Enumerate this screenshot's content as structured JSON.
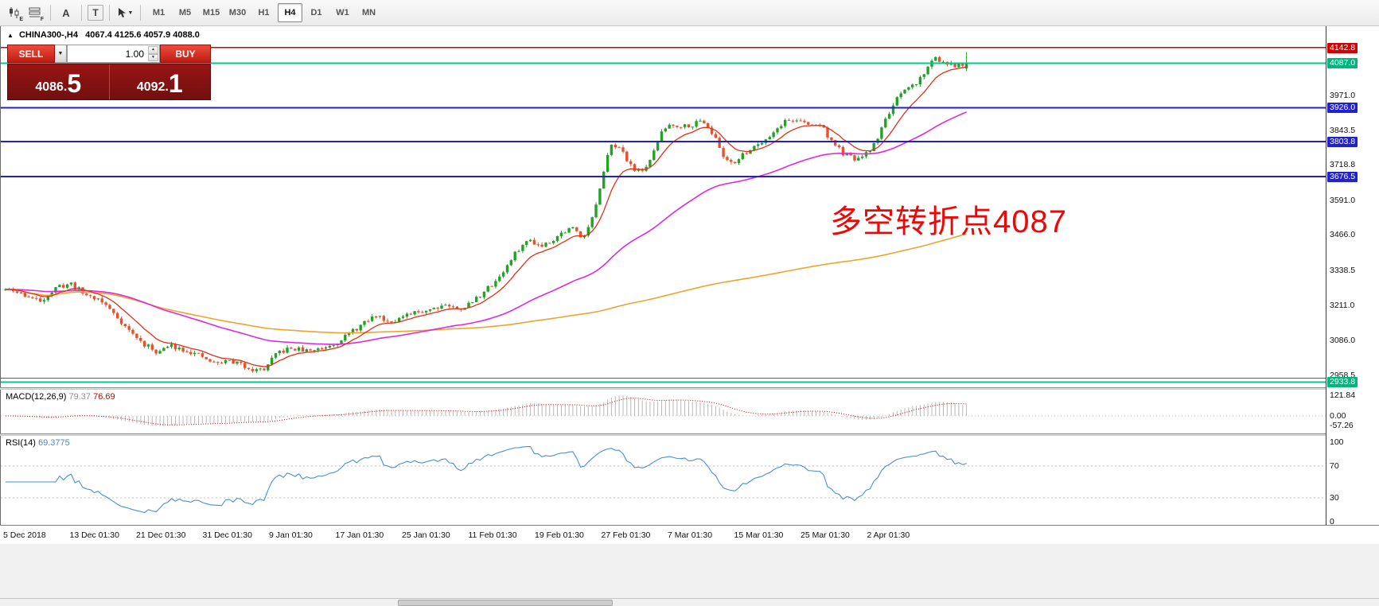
{
  "toolbar": {
    "icons": [
      {
        "name": "candlestick-chart-icon",
        "sub": "E"
      },
      {
        "name": "indicator-list-icon",
        "sub": "F"
      },
      {
        "name": "label-tool-icon",
        "glyph": "A"
      },
      {
        "name": "text-tool-icon",
        "glyph": "T"
      },
      {
        "name": "cursor-tool-icon",
        "sub": ""
      }
    ],
    "timeframes": [
      "M1",
      "M5",
      "M15",
      "M30",
      "H1",
      "H4",
      "D1",
      "W1",
      "MN"
    ],
    "active_timeframe": "H4"
  },
  "icons": {
    "collapse": "▲",
    "dropdown": "▼",
    "spin_up": "▲",
    "spin_down": "▼"
  },
  "chart": {
    "header_symbol": "CHINA300-,H4",
    "header_ohlc": "4067.4 4125.6 4057.9 4088.0",
    "annotation": "多空转折点4087",
    "annotation_color": "#f00606",
    "price_scale": {
      "top_price": 4220,
      "bottom_price": 2915
    },
    "axis_labels": [
      3971.0,
      3843.5,
      3718.8,
      3591.0,
      3466.0,
      3338.5,
      3211.0,
      3086.0,
      2958.5
    ],
    "hlines": [
      {
        "price": 4142.8,
        "color": "#cc0404",
        "width": 1.4,
        "badge": "4142.8",
        "badge_bg": "#cc0404"
      },
      {
        "price": 4087.0,
        "color": "#00c98e",
        "width": 2,
        "badge": "4087.0",
        "badge_bg": "#00b67f"
      },
      {
        "price": 3926.0,
        "color": "#2020d0",
        "width": 2,
        "badge": "3926.0",
        "badge_bg": "#2222cc"
      },
      {
        "price": 3803.8,
        "color": "#2020d0",
        "width": 2,
        "badge": "3803.8",
        "badge_bg": "#2222cc"
      },
      {
        "price": 3676.5,
        "color": "#2020d0",
        "width": 2,
        "badge": "3676.5",
        "badge_bg": "#2222cc"
      },
      {
        "price": 2948.0,
        "color": "#cc2a2a",
        "width": 1.4,
        "badge": "",
        "badge_bg": ""
      },
      {
        "price": 2933.8,
        "color": "#00c98e",
        "width": 2,
        "badge": "2933.8",
        "badge_bg": "#00b67f"
      }
    ]
  },
  "trade_panel": {
    "sell_label": "SELL",
    "buy_label": "BUY",
    "volume": "1.00",
    "sell_price_small": "4086.",
    "sell_price_big": "5",
    "buy_price_small": "4092.",
    "buy_price_big": "1"
  },
  "macd": {
    "label": "MACD(12,26,9)",
    "value1": "79.37",
    "value2": "76.69",
    "axis": [
      "121.84",
      "0.00",
      "-57.26"
    ],
    "hist_color": "#b8b8b8",
    "signal_color": "#cc0000"
  },
  "rsi": {
    "label": "RSI(14)",
    "value": "69.3775",
    "axis": [
      "100",
      "70",
      "30",
      "0"
    ],
    "line_color": "#4a90d2"
  },
  "time_axis": [
    "5 Dec 2018",
    "13 Dec 01:30",
    "21 Dec 01:30",
    "31 Dec 01:30",
    "9 Jan 01:30",
    "17 Jan 01:30",
    "25 Jan 01:30",
    "11 Feb 01:30",
    "19 Feb 01:30",
    "27 Feb 01:30",
    "7 Mar 01:30",
    "15 Mar 01:30",
    "25 Mar 01:30",
    "2 Apr 01:30"
  ],
  "chart_data": {
    "type": "candlestick",
    "symbol": "CHINA300-",
    "timeframe": "H4",
    "last_candle": {
      "open": 4067.4,
      "high": 4125.6,
      "low": 4057.9,
      "close": 4088.0
    },
    "candle_count": 250,
    "bar_spacing": 4.85,
    "seed": 11,
    "noise": 9,
    "up_color": "#23a127",
    "down_color": "#e8512b",
    "ma_fast_color": "#e03018",
    "ma_mid_color": "#dd2add",
    "ma_slow_color": "#eda42f",
    "ma_periods": {
      "fast": 10,
      "mid": 60,
      "slow": 220
    },
    "ylim": [
      2915,
      4220
    ],
    "waypoints": [
      [
        0.0,
        3268
      ],
      [
        0.018,
        3252
      ],
      [
        0.035,
        3225
      ],
      [
        0.055,
        3278
      ],
      [
        0.068,
        3290
      ],
      [
        0.082,
        3252
      ],
      [
        0.098,
        3232
      ],
      [
        0.112,
        3185
      ],
      [
        0.128,
        3122
      ],
      [
        0.143,
        3072
      ],
      [
        0.158,
        3042
      ],
      [
        0.172,
        3066
      ],
      [
        0.188,
        3050
      ],
      [
        0.203,
        3026
      ],
      [
        0.218,
        3000
      ],
      [
        0.232,
        3012
      ],
      [
        0.247,
        2995
      ],
      [
        0.26,
        2976
      ],
      [
        0.27,
        2982
      ],
      [
        0.283,
        3040
      ],
      [
        0.298,
        3056
      ],
      [
        0.313,
        3046
      ],
      [
        0.328,
        3056
      ],
      [
        0.343,
        3076
      ],
      [
        0.358,
        3110
      ],
      [
        0.373,
        3146
      ],
      [
        0.386,
        3176
      ],
      [
        0.398,
        3154
      ],
      [
        0.413,
        3166
      ],
      [
        0.428,
        3186
      ],
      [
        0.443,
        3200
      ],
      [
        0.458,
        3216
      ],
      [
        0.47,
        3196
      ],
      [
        0.483,
        3216
      ],
      [
        0.495,
        3252
      ],
      [
        0.508,
        3292
      ],
      [
        0.52,
        3342
      ],
      [
        0.533,
        3412
      ],
      [
        0.546,
        3450
      ],
      [
        0.556,
        3426
      ],
      [
        0.568,
        3446
      ],
      [
        0.58,
        3476
      ],
      [
        0.59,
        3492
      ],
      [
        0.6,
        3456
      ],
      [
        0.61,
        3520
      ],
      [
        0.62,
        3648
      ],
      [
        0.63,
        3802
      ],
      [
        0.638,
        3782
      ],
      [
        0.648,
        3732
      ],
      [
        0.658,
        3692
      ],
      [
        0.67,
        3722
      ],
      [
        0.68,
        3822
      ],
      [
        0.69,
        3866
      ],
      [
        0.703,
        3860
      ],
      [
        0.716,
        3866
      ],
      [
        0.726,
        3882
      ],
      [
        0.736,
        3832
      ],
      [
        0.748,
        3742
      ],
      [
        0.76,
        3730
      ],
      [
        0.773,
        3772
      ],
      [
        0.786,
        3802
      ],
      [
        0.798,
        3832
      ],
      [
        0.81,
        3876
      ],
      [
        0.823,
        3882
      ],
      [
        0.836,
        3862
      ],
      [
        0.848,
        3866
      ],
      [
        0.86,
        3802
      ],
      [
        0.873,
        3756
      ],
      [
        0.886,
        3736
      ],
      [
        0.898,
        3762
      ],
      [
        0.908,
        3822
      ],
      [
        0.918,
        3902
      ],
      [
        0.928,
        3956
      ],
      [
        0.938,
        3992
      ],
      [
        0.948,
        4016
      ],
      [
        0.958,
        4062
      ],
      [
        0.968,
        4112
      ],
      [
        0.976,
        4086
      ],
      [
        0.988,
        4076
      ],
      [
        1.0,
        4088
      ]
    ]
  }
}
